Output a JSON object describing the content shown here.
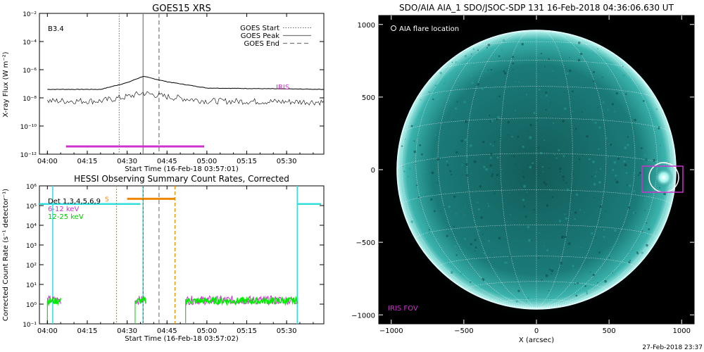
{
  "goes": {
    "title": "GOES15 XRS",
    "class_label": "B3.4",
    "ylabel": "X-ray Flux (W m⁻²)",
    "xlabel": "Start Time (16-Feb-18 03:57:01)",
    "legend": [
      "GOES Start",
      "GOES Peak",
      "GOES End"
    ],
    "iris_label": "IRIS",
    "yticks": [
      "10⁻¹²",
      "10⁻¹⁰",
      "10⁻⁸",
      "10⁻⁶",
      "10⁻⁴",
      "10⁻²"
    ],
    "xticks": [
      "04:00",
      "04:15",
      "04:30",
      "04:45",
      "05:00",
      "05:15",
      "05:30"
    ]
  },
  "hessi": {
    "title": "HESSI Observing Summary Count Rates, Corrected",
    "ylabel": "Corrected Count Rate (s⁻¹ detector⁻¹)",
    "xlabel": "Start Time (16-Feb-18 03:57:02)",
    "legend": [
      "Det 1,3,4,5,6,9",
      "6-12 keV",
      "12-25 keV"
    ],
    "flag": "S",
    "yticks": [
      "10⁻¹",
      "10⁰",
      "10¹",
      "10²",
      "10³",
      "10⁴",
      "10⁵",
      "10⁶"
    ],
    "xticks": [
      "04:00",
      "04:15",
      "04:30",
      "04:45",
      "05:00",
      "05:15",
      "05:30"
    ]
  },
  "aia": {
    "title": "SDO/AIA AIA_1 SDO/JSOC-SDP 131 16-Feb-2018 04:36:06.630 UT",
    "legend": "AIA flare location",
    "iris_fov": "IRIS FOV",
    "xlabel": "X (arcsec)",
    "xticks": [
      "−1000",
      "−500",
      "0",
      "500",
      "1000"
    ],
    "yticks": [
      "1000",
      "500",
      "0",
      "−500",
      "−1000"
    ],
    "date_stamp": "27-Feb-2018 23:37"
  },
  "colors": {
    "goes_flux": "#000000",
    "iris_bar": "#cc33cc",
    "hessi_6_12": "#cc33cc",
    "hessi_12_25": "#00ee00",
    "hessi_flag": "#ee8800",
    "hessi_att": "#33dddd",
    "sun_fill": "#1a7b78",
    "sun_limb": "#e8ffff"
  },
  "chart_data": [
    {
      "type": "line",
      "title": "GOES15 XRS",
      "xlabel": "Start Time (16-Feb-18 03:57:01)",
      "ylabel": "X-ray Flux (W m⁻²)",
      "yscale": "log",
      "ylim": [
        1e-12,
        0.01
      ],
      "xlim_minutes_after_0357": [
        0,
        107
      ],
      "events": {
        "goes_start": "04:27",
        "goes_peak": "04:36",
        "goes_end": "04:42"
      },
      "series": [
        {
          "x": [
            "04:00",
            "04:20",
            "04:30",
            "04:36",
            "04:45",
            "05:00",
            "05:45"
          ],
          "values": [
            4e-08,
            4e-08,
            1.2e-07,
            3.4e-07,
            1.4e-07,
            5e-08,
            4e-08
          ]
        },
        {
          "x": [
            "04:00",
            "04:20",
            "04:30",
            "04:36",
            "04:45",
            "05:00",
            "05:45"
          ],
          "values": [
            6e-09,
            6e-09,
            1.2e-08,
            2.2e-08,
            1.2e-08,
            6e-09,
            5e-09
          ]
        }
      ],
      "iris_interval": [
        "04:07",
        "04:59"
      ]
    },
    {
      "type": "line",
      "title": "HESSI Observing Summary Count Rates, Corrected",
      "xlabel": "Start Time (16-Feb-18 03:57:02)",
      "ylabel": "Corrected Count Rate (s⁻¹ detector⁻¹)",
      "yscale": "log",
      "ylim": [
        0.1,
        1000000.0
      ],
      "series": [
        {
          "name": "6-12 keV",
          "x": [
            "04:00",
            "04:05",
            "04:36",
            "04:40",
            "04:52",
            "05:35"
          ],
          "values": [
            1.5,
            1.5,
            1.5,
            1.5,
            1.2,
            1.2
          ]
        },
        {
          "name": "12-25 keV",
          "x": [
            "04:00",
            "04:05",
            "04:36",
            "04:40",
            "04:52",
            "05:35"
          ],
          "values": [
            1.4,
            1.4,
            1.4,
            1.4,
            1.0,
            1.0
          ]
        }
      ],
      "flag_S_interval": [
        "04:26",
        "04:48"
      ],
      "attenuator_intervals": [
        [
          "03:57",
          "04:35"
        ],
        [
          "05:34",
          "05:43"
        ]
      ]
    },
    {
      "type": "heatmap",
      "title": "SDO/AIA AIA_1 SDO/JSOC-SDP 131 16-Feb-2018 04:36:06.630 UT",
      "xlabel": "X (arcsec)",
      "xlim": [
        -1170,
        1170
      ],
      "ylim": [
        -1100,
        1100
      ],
      "flare_location_arcsec": [
        880,
        -20
      ],
      "iris_fov_arcsec": {
        "x": [
          725,
          1040
        ],
        "y": [
          -175,
          140
        ]
      }
    }
  ]
}
